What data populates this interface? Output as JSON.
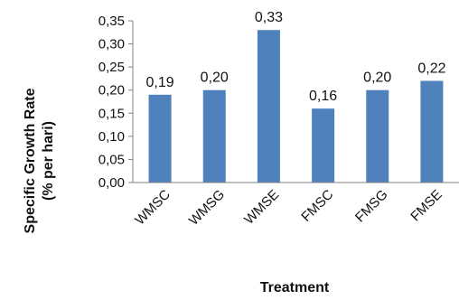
{
  "chart_data": {
    "type": "bar",
    "title": "",
    "xlabel": "Treatment",
    "ylabel_lines": [
      "Specific Growth Rate",
      "(% per hari)"
    ],
    "categories": [
      "WMSC",
      "WMSG",
      "WMSE",
      "FMSC",
      "FMSG",
      "FMSE"
    ],
    "values": [
      0.19,
      0.2,
      0.33,
      0.16,
      0.2,
      0.22
    ],
    "data_labels": [
      "0,19",
      "0,20",
      "0,33",
      "0,16",
      "0,20",
      "0,22"
    ],
    "ylim": [
      0,
      0.35
    ],
    "yticks": [
      0.0,
      0.05,
      0.1,
      0.15,
      0.2,
      0.25,
      0.3,
      0.35
    ],
    "ytick_labels": [
      "0,00",
      "0,05",
      "0,10",
      "0,15",
      "0,20",
      "0,25",
      "0,30",
      "0,35"
    ],
    "grid": false,
    "legend": "none",
    "bar_color": "#4F81BD"
  }
}
